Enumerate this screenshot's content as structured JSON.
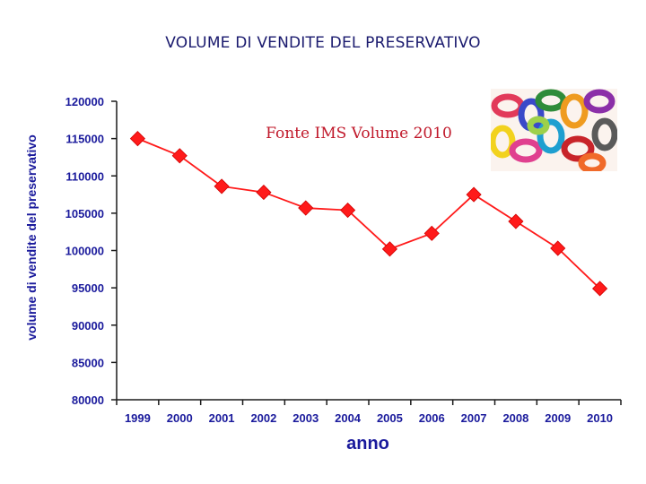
{
  "chart_data": {
    "type": "line",
    "title": "VOLUME DI VENDITE DEL PRESERVATIVO",
    "xlabel": "anno",
    "ylabel": "volume di vendite del preservativo",
    "annotation": "Fonte IMS Volume 2010",
    "categories": [
      "1999",
      "2000",
      "2001",
      "2002",
      "2003",
      "2004",
      "2005",
      "2006",
      "2007",
      "2008",
      "2009",
      "2010"
    ],
    "series": [
      {
        "values": [
          115000,
          112700,
          108600,
          107800,
          105700,
          105400,
          100200,
          102300,
          107500,
          103900,
          100300,
          94900
        ],
        "color": "#ff1a1a",
        "marker": "diamond"
      }
    ],
    "ylim": [
      80000,
      120000
    ],
    "yticks": [
      80000,
      85000,
      90000,
      95000,
      100000,
      105000,
      110000,
      115000,
      120000
    ],
    "grid": false,
    "legend": "none"
  },
  "image": {
    "icon": "condoms-photo"
  }
}
